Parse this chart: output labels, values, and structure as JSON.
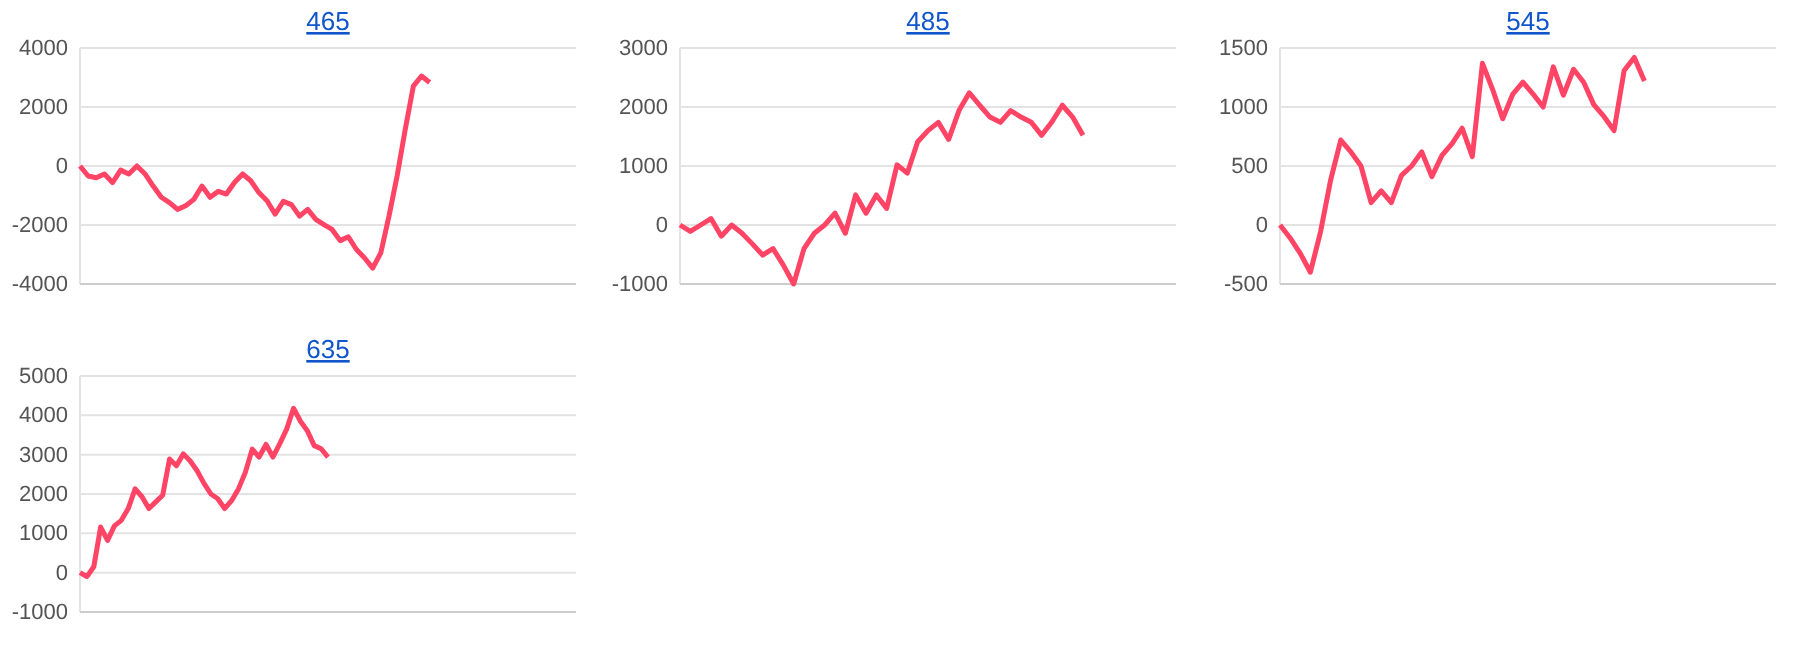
{
  "chart_data": [
    {
      "type": "line",
      "title": "465",
      "tick_labels": "y",
      "grid": "y",
      "ylim": [
        -4000,
        4000
      ],
      "yticks": [
        -4000,
        -2000,
        0,
        2000,
        4000
      ],
      "categories": [
        null,
        null,
        null,
        null,
        null,
        null,
        null,
        null,
        null,
        null,
        null,
        null,
        null,
        null,
        null,
        null,
        null,
        null,
        null,
        null,
        null,
        null,
        null,
        null,
        null,
        null,
        null,
        null,
        null,
        null,
        null,
        null,
        null,
        null,
        null,
        null,
        null,
        null,
        null,
        null,
        null,
        null,
        null,
        null,
        null,
        null,
        null,
        null,
        null,
        null,
        null,
        null,
        null,
        null,
        null,
        null,
        null,
        null,
        null,
        null,
        null,
        null
      ],
      "series": [
        {
          "color": "#ff4466",
          "values": [
            0,
            -340,
            -400,
            -270,
            -560,
            -140,
            -270,
            0,
            -270,
            -680,
            -1060,
            -1240,
            -1470,
            -1350,
            -1130,
            -680,
            -1060,
            -860,
            -950,
            -560,
            -270,
            -500,
            -900,
            -1180,
            -1630,
            -1200,
            -1310,
            -1700,
            -1470,
            -1810,
            -1990,
            -2150,
            -2530,
            -2400,
            -2830,
            -3120,
            -3460,
            -2940,
            -1700,
            -340,
            1240,
            2710,
            3050,
            2830,
            null,
            null,
            null,
            null,
            null,
            null,
            null,
            null,
            null,
            null,
            null,
            null,
            null,
            null,
            null,
            null,
            null,
            null
          ]
        }
      ]
    },
    {
      "type": "line",
      "title": "485",
      "tick_labels": "y",
      "grid": "y",
      "ylim": [
        -1000,
        3000
      ],
      "yticks": [
        -1000,
        0,
        1000,
        2000,
        3000
      ],
      "categories": [
        null,
        null,
        null,
        null,
        null,
        null,
        null,
        null,
        null,
        null,
        null,
        null,
        null,
        null,
        null,
        null,
        null,
        null,
        null,
        null,
        null,
        null,
        null,
        null,
        null,
        null,
        null,
        null,
        null,
        null,
        null,
        null,
        null,
        null,
        null,
        null,
        null,
        null,
        null,
        null,
        null,
        null,
        null,
        null,
        null,
        null,
        null,
        null,
        null
      ],
      "series": [
        {
          "color": "#ff4466",
          "values": [
            0,
            -110,
            0,
            110,
            -190,
            0,
            -140,
            -320,
            -510,
            -400,
            -680,
            -1000,
            -400,
            -140,
            0,
            200,
            -140,
            510,
            200,
            510,
            280,
            1020,
            880,
            1410,
            1600,
            1740,
            1450,
            1940,
            2240,
            2030,
            1830,
            1740,
            1940,
            1830,
            1740,
            1520,
            1750,
            2030,
            1830,
            1520,
            null,
            null,
            null,
            null,
            null,
            null,
            null,
            null,
            null
          ]
        }
      ]
    },
    {
      "type": "line",
      "title": "545",
      "tick_labels": "y",
      "grid": "y",
      "ylim": [
        -500,
        1500
      ],
      "yticks": [
        -500,
        0,
        500,
        1000,
        1500
      ],
      "categories": [
        null,
        null,
        null,
        null,
        null,
        null,
        null,
        null,
        null,
        null,
        null,
        null,
        null,
        null,
        null,
        null,
        null,
        null,
        null,
        null,
        null,
        null,
        null,
        null,
        null,
        null,
        null,
        null,
        null,
        null,
        null,
        null,
        null,
        null,
        null,
        null,
        null,
        null,
        null,
        null,
        null,
        null,
        null,
        null,
        null,
        null,
        null,
        null,
        null,
        null
      ],
      "series": [
        {
          "color": "#ff4466",
          "values": [
            0,
            -110,
            -240,
            -400,
            -60,
            380,
            720,
            620,
            500,
            190,
            290,
            190,
            420,
            500,
            620,
            410,
            590,
            690,
            820,
            580,
            1370,
            1150,
            900,
            1110,
            1210,
            1110,
            1000,
            1340,
            1100,
            1320,
            1210,
            1020,
            920,
            800,
            1310,
            1420,
            1220,
            null,
            null,
            null,
            null,
            null,
            null,
            null,
            null,
            null,
            null,
            null,
            null,
            null
          ]
        }
      ]
    },
    {
      "type": "line",
      "title": "635",
      "tick_labels": "y",
      "grid": "y",
      "ylim": [
        -1000,
        5000
      ],
      "yticks": [
        -1000,
        0,
        1000,
        2000,
        3000,
        4000,
        5000
      ],
      "categories": [
        null,
        null,
        null,
        null,
        null,
        null,
        null,
        null,
        null,
        null,
        null,
        null,
        null,
        null,
        null,
        null,
        null,
        null,
        null,
        null,
        null,
        null,
        null,
        null,
        null,
        null,
        null,
        null,
        null,
        null,
        null,
        null,
        null,
        null,
        null,
        null,
        null,
        null,
        null,
        null,
        null,
        null,
        null,
        null,
        null,
        null,
        null,
        null,
        null,
        null,
        null,
        null,
        null,
        null,
        null,
        null,
        null,
        null,
        null,
        null,
        null,
        null,
        null,
        null,
        null,
        null,
        null,
        null,
        null,
        null,
        null,
        null,
        null
      ],
      "series": [
        {
          "color": "#ff4466",
          "values": [
            0,
            -100,
            150,
            1160,
            820,
            1190,
            1330,
            1630,
            2130,
            1930,
            1630,
            1800,
            1970,
            2890,
            2720,
            3020,
            2840,
            2590,
            2270,
            2000,
            1880,
            1630,
            1830,
            2130,
            2550,
            3140,
            2940,
            3260,
            2940,
            3280,
            3650,
            4180,
            3850,
            3610,
            3230,
            3150,
            2940,
            null,
            null,
            null,
            null,
            null,
            null,
            null,
            null,
            null,
            null,
            null,
            null,
            null,
            null,
            null,
            null,
            null,
            null,
            null,
            null,
            null,
            null,
            null,
            null,
            null,
            null,
            null,
            null,
            null,
            null,
            null,
            null,
            null,
            null,
            null,
            null
          ]
        }
      ]
    }
  ]
}
